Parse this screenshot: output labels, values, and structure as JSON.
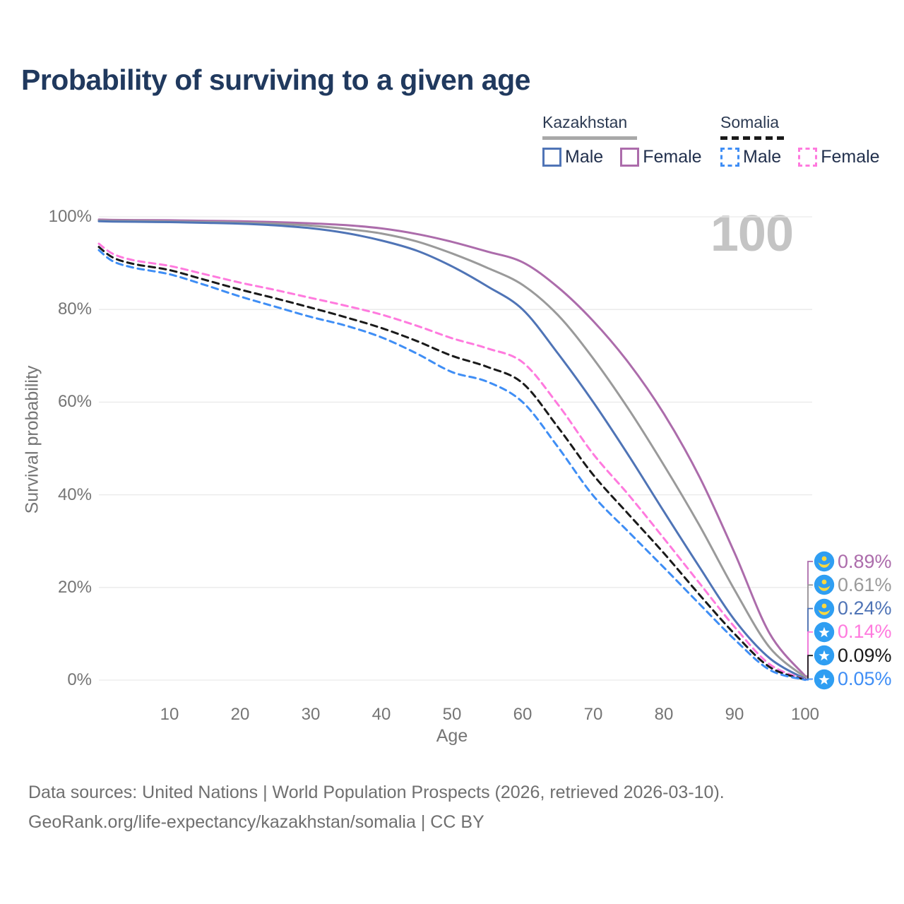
{
  "title": "Probability of surviving to a given age",
  "age_counter": "100",
  "legend": {
    "groups": [
      {
        "country": "Kazakhstan",
        "line_style": "solid",
        "line_color": "#a8a8a8",
        "items": [
          {
            "label": "Male",
            "color": "#4f74b6",
            "style": "solid"
          },
          {
            "label": "Female",
            "color": "#ac6cab",
            "style": "solid"
          }
        ]
      },
      {
        "country": "Somalia",
        "line_style": "dashed",
        "line_color": "#1a1a1a",
        "items": [
          {
            "label": "Male",
            "color": "#3f8ef5",
            "style": "dashed"
          },
          {
            "label": "Female",
            "color": "#ff7ade",
            "style": "dashed"
          }
        ]
      }
    ]
  },
  "chart_data": {
    "type": "line",
    "title": "Probability of surviving to a given age",
    "xlabel": "Age",
    "ylabel": "Survival probability",
    "xlim": [
      0,
      100
    ],
    "ylim": [
      0,
      100
    ],
    "grid": "horizontal",
    "legend_position": "top-right",
    "x_ticks": [
      10,
      20,
      30,
      40,
      50,
      60,
      70,
      80,
      90,
      100
    ],
    "y_ticks": [
      {
        "value": 0,
        "label": "0%"
      },
      {
        "value": 20,
        "label": "20%"
      },
      {
        "value": 40,
        "label": "40%"
      },
      {
        "value": 60,
        "label": "60%"
      },
      {
        "value": 80,
        "label": "80%"
      },
      {
        "value": 100,
        "label": "100%"
      }
    ],
    "x": [
      0,
      2,
      5,
      10,
      15,
      20,
      25,
      30,
      35,
      40,
      45,
      50,
      55,
      60,
      65,
      70,
      75,
      80,
      85,
      90,
      95,
      100
    ],
    "series": [
      {
        "name": "Kazakhstan Female",
        "color": "#ac6cab",
        "dash": "solid",
        "flag": "kazakhstan",
        "end_label": "0.89%",
        "values": [
          99.4,
          99.33,
          99.3,
          99.25,
          99.15,
          99.05,
          98.85,
          98.6,
          98.2,
          97.5,
          96.3,
          94.6,
          92.5,
          90.2,
          84.8,
          77.5,
          68.5,
          57.5,
          44.0,
          27.5,
          10.0,
          0.89
        ]
      },
      {
        "name": "Kazakhstan (both sexes)",
        "color": "#9a9a9a",
        "dash": "solid",
        "flag": "kazakhstan",
        "end_label": "0.61%",
        "values": [
          99.2,
          99.13,
          99.1,
          99.0,
          98.9,
          98.75,
          98.5,
          98.1,
          97.4,
          96.4,
          94.7,
          92.1,
          89.0,
          85.3,
          78.8,
          69.4,
          58.5,
          46.4,
          33.5,
          19.5,
          7.0,
          0.61
        ]
      },
      {
        "name": "Kazakhstan Male",
        "color": "#4f74b6",
        "dash": "solid",
        "flag": "kazakhstan",
        "end_label": "0.24%",
        "values": [
          99.05,
          98.97,
          98.93,
          98.85,
          98.7,
          98.5,
          98.15,
          97.55,
          96.5,
          94.9,
          92.7,
          89.3,
          85.0,
          80.0,
          70.5,
          60.0,
          48.5,
          36.4,
          24.5,
          13.0,
          4.7,
          0.24
        ]
      },
      {
        "name": "Somalia Female",
        "color": "#ff7ade",
        "dash": "dashed",
        "flag": "somalia",
        "end_label": "0.14%",
        "values": [
          94.2,
          92.0,
          90.6,
          89.4,
          87.6,
          85.8,
          84.2,
          82.5,
          80.8,
          78.9,
          76.5,
          73.8,
          71.6,
          68.6,
          59.5,
          48.8,
          40.0,
          30.6,
          21.0,
          11.5,
          3.4,
          0.14
        ]
      },
      {
        "name": "Somalia (both sexes)",
        "color": "#1a1a1a",
        "dash": "dashed",
        "flag": "somalia",
        "end_label": "0.09%",
        "values": [
          93.5,
          91.2,
          89.8,
          88.5,
          86.4,
          84.3,
          82.4,
          80.4,
          78.3,
          76.0,
          73.2,
          70.0,
          67.6,
          64.1,
          54.6,
          44.3,
          35.8,
          27.4,
          18.5,
          10.0,
          2.8,
          0.09
        ]
      },
      {
        "name": "Somalia Male",
        "color": "#3f8ef5",
        "dash": "dashed",
        "flag": "somalia",
        "end_label": "0.05%",
        "values": [
          92.8,
          90.4,
          89.0,
          87.6,
          85.3,
          82.8,
          80.6,
          78.4,
          76.5,
          74.0,
          70.5,
          66.5,
          64.4,
          60.0,
          50.3,
          39.8,
          32.0,
          24.3,
          16.5,
          8.8,
          2.2,
          0.05
        ]
      }
    ]
  },
  "flags": {
    "circle_blue": "#2f9ef2",
    "emblem_yellow": "#ffd83d",
    "star_white": "#ffffff"
  },
  "grid_color": "#e9e9e9",
  "footer": {
    "line1": "Data sources: United Nations | World Population Prospects (2026, retrieved 2026-03-10).",
    "line2": "GeoRank.org/life-expectancy/kazakhstan/somalia | CC BY"
  }
}
